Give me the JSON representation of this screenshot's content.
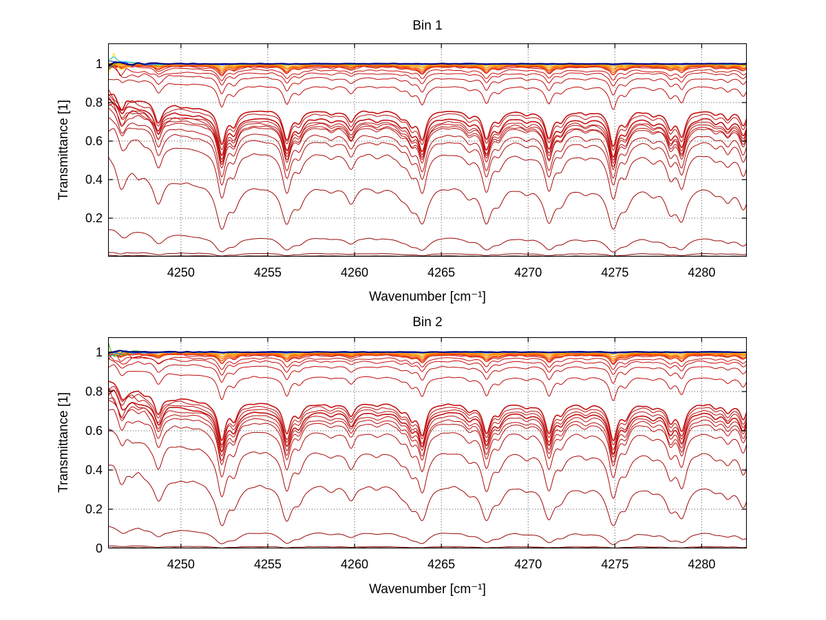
{
  "figure": {
    "background": "#ffffff",
    "curve_color_main": "#C00808",
    "grid_color": "#4a4a4a"
  },
  "chart_data": [
    {
      "type": "line",
      "title": "Bin 1",
      "xlabel": "Wavenumber [cm⁻¹]",
      "ylabel": "Transmittance [1]",
      "xlim": [
        4245.8,
        4282.6
      ],
      "ylim": [
        0,
        1.107
      ],
      "xticks": [
        4250,
        4255,
        4260,
        4265,
        4270,
        4275,
        4280
      ],
      "yticks": [
        0.2,
        0.4,
        0.6,
        0.8,
        1
      ],
      "ytick_labels": [
        "0.2",
        "0.4",
        "0.6",
        "0.8",
        "1"
      ],
      "grid": true,
      "absorption_lines": {
        "positions": [
          4246.6,
          4248.7,
          4252.35,
          4253.05,
          4256.1,
          4256.8,
          4258.65,
          4259.8,
          4261.3,
          4262.7,
          4263.3,
          4263.9,
          4266.6,
          4267.6,
          4268.3,
          4269.9,
          4271.2,
          4271.9,
          4273.3,
          4274.9,
          4275.6,
          4277.2,
          4278.2,
          4278.85,
          4280.8,
          4281.5,
          4282.4
        ],
        "strengths": [
          0.3,
          0.45,
          1.0,
          0.4,
          0.82,
          0.3,
          0.1,
          0.32,
          0.08,
          0.16,
          0.35,
          0.8,
          0.16,
          0.78,
          0.25,
          0.1,
          0.78,
          0.25,
          0.1,
          1.0,
          0.35,
          0.12,
          0.45,
          0.7,
          0.12,
          0.25,
          0.5
        ]
      },
      "series": [
        {
          "baseline": 0.985,
          "color": "#C80A0A",
          "width": 1,
          "kind": "red",
          "seed": 101
        },
        {
          "baseline": 0.97,
          "color": "#C80A0A",
          "width": 1,
          "kind": "red",
          "seed": 102
        },
        {
          "baseline": 0.955,
          "color": "#C80A0A",
          "width": 1,
          "kind": "red",
          "seed": 103
        },
        {
          "baseline": 0.93,
          "color": "#BE0909",
          "width": 1,
          "kind": "red",
          "seed": 104
        },
        {
          "baseline": 0.887,
          "color": "#BE0909",
          "width": 1,
          "kind": "red",
          "seed": 105
        },
        {
          "baseline": 0.764,
          "color": "#C41010",
          "width": 1.6,
          "kind": "red",
          "seed": 106
        },
        {
          "baseline": 0.748,
          "color": "#B80C0C",
          "width": 1,
          "kind": "red",
          "seed": 107
        },
        {
          "baseline": 0.725,
          "color": "#C41010",
          "width": 1.6,
          "kind": "red",
          "seed": 108
        },
        {
          "baseline": 0.71,
          "color": "#B80C0C",
          "width": 1,
          "kind": "red",
          "seed": 109
        },
        {
          "baseline": 0.7,
          "color": "#B80C0C",
          "width": 1,
          "kind": "red",
          "seed": 110
        },
        {
          "baseline": 0.688,
          "color": "#B80C0C",
          "width": 1,
          "kind": "red",
          "seed": 111
        },
        {
          "baseline": 0.679,
          "color": "#B80C0C",
          "width": 1,
          "kind": "red",
          "seed": 112
        },
        {
          "baseline": 0.643,
          "color": "#B00A0A",
          "width": 1,
          "kind": "red",
          "seed": 113
        },
        {
          "baseline": 0.611,
          "color": "#B00A0A",
          "width": 1,
          "kind": "red",
          "seed": 114
        },
        {
          "baseline": 0.546,
          "color": "#A80808",
          "width": 1,
          "kind": "red",
          "seed": 115
        },
        {
          "baseline": 0.375,
          "color": "#A00606",
          "width": 1,
          "kind": "red",
          "seed": 116
        },
        {
          "baseline": 0.107,
          "color": "#980505",
          "width": 1,
          "kind": "red",
          "seed": 117
        },
        {
          "baseline": 0.018,
          "color": "#8A0404",
          "width": 1,
          "kind": "red",
          "seed": 118
        },
        {
          "baseline": 0.004,
          "color": "#700303",
          "width": 1,
          "kind": "red",
          "seed": 119
        },
        {
          "baseline": 0.9995,
          "color": "#FFB400",
          "width": 1.4,
          "kind": "band",
          "alpha": 0.012,
          "seed": 121
        },
        {
          "baseline": 0.997,
          "color": "#FF9800",
          "width": 1.4,
          "kind": "band",
          "alpha": 0.02,
          "seed": 122
        },
        {
          "baseline": 0.9945,
          "color": "#FF7A00",
          "width": 1.4,
          "kind": "band",
          "alpha": 0.028,
          "seed": 123
        },
        {
          "baseline": 0.9915,
          "color": "#F65A08",
          "width": 1.4,
          "kind": "band",
          "alpha": 0.036,
          "seed": 124
        },
        {
          "baseline": 0.9885,
          "color": "#E63A10",
          "width": 1.4,
          "kind": "band",
          "alpha": 0.044,
          "seed": 125
        },
        {
          "baseline": 1.0,
          "color": "#FFD900",
          "width": 1,
          "kind": "edge",
          "alpha": 0.004,
          "edge_amp": 0.1,
          "seed": 131
        },
        {
          "baseline": 1.0,
          "color": "#2BB42B",
          "width": 1,
          "kind": "edge",
          "alpha": 0.004,
          "edge_amp": 0.085,
          "seed": 132
        },
        {
          "baseline": 1.0,
          "color": "#00C8F0",
          "width": 1,
          "kind": "edge",
          "alpha": 0.004,
          "edge_amp": 0.068,
          "seed": 133
        },
        {
          "baseline": 1.0,
          "color": "#2A5CFF",
          "width": 1.2,
          "kind": "edge",
          "alpha": 0.004,
          "edge_amp": 0.05,
          "seed": 134
        },
        {
          "baseline": 1.0015,
          "color": "#000082",
          "width": 2.1,
          "kind": "edge",
          "alpha": 0.002,
          "edge_amp": 0.013,
          "seed": 135
        }
      ]
    },
    {
      "type": "line",
      "title": "Bin 2",
      "xlabel": "Wavenumber [cm⁻¹]",
      "ylabel": "Transmittance [1]",
      "xlim": [
        4245.8,
        4282.6
      ],
      "ylim": [
        0,
        1.077
      ],
      "xticks": [
        4250,
        4255,
        4260,
        4265,
        4270,
        4275,
        4280
      ],
      "yticks": [
        0,
        0.2,
        0.4,
        0.6,
        0.8,
        1
      ],
      "ytick_labels": [
        "0",
        "0.2",
        "0.4",
        "0.6",
        "0.8",
        "1"
      ],
      "grid": true,
      "absorption_lines": {
        "positions": [
          4246.6,
          4248.7,
          4252.35,
          4253.05,
          4256.1,
          4256.8,
          4258.65,
          4259.8,
          4261.3,
          4262.7,
          4263.3,
          4263.9,
          4266.6,
          4267.6,
          4268.3,
          4269.9,
          4271.2,
          4271.9,
          4273.3,
          4274.9,
          4275.6,
          4277.2,
          4278.2,
          4278.85,
          4280.8,
          4281.5,
          4282.4
        ],
        "strengths": [
          0.3,
          0.45,
          1.0,
          0.4,
          0.82,
          0.3,
          0.1,
          0.32,
          0.08,
          0.16,
          0.35,
          0.8,
          0.16,
          0.78,
          0.25,
          0.1,
          0.78,
          0.25,
          0.1,
          1.0,
          0.35,
          0.12,
          0.45,
          0.7,
          0.12,
          0.25,
          0.5
        ]
      },
      "series": [
        {
          "baseline": 0.985,
          "color": "#C80A0A",
          "width": 1,
          "kind": "red",
          "seed": 201
        },
        {
          "baseline": 0.97,
          "color": "#C80A0A",
          "width": 1,
          "kind": "red",
          "seed": 202
        },
        {
          "baseline": 0.955,
          "color": "#C80A0A",
          "width": 1,
          "kind": "red",
          "seed": 203
        },
        {
          "baseline": 0.93,
          "color": "#BE0909",
          "width": 1,
          "kind": "red",
          "seed": 204
        },
        {
          "baseline": 0.878,
          "color": "#BE0909",
          "width": 1,
          "kind": "red",
          "seed": 205
        },
        {
          "baseline": 0.745,
          "color": "#C41010",
          "width": 1.6,
          "kind": "red",
          "seed": 206
        },
        {
          "baseline": 0.73,
          "color": "#B80C0C",
          "width": 1,
          "kind": "red",
          "seed": 207
        },
        {
          "baseline": 0.715,
          "color": "#B80C0C",
          "width": 1,
          "kind": "red",
          "seed": 208
        },
        {
          "baseline": 0.7,
          "color": "#C41010",
          "width": 1.6,
          "kind": "red",
          "seed": 209
        },
        {
          "baseline": 0.685,
          "color": "#B80C0C",
          "width": 1,
          "kind": "red",
          "seed": 210
        },
        {
          "baseline": 0.667,
          "color": "#B80C0C",
          "width": 1,
          "kind": "red",
          "seed": 211
        },
        {
          "baseline": 0.65,
          "color": "#B80C0C",
          "width": 1,
          "kind": "red",
          "seed": 212
        },
        {
          "baseline": 0.604,
          "color": "#B00A0A",
          "width": 1,
          "kind": "red",
          "seed": 213
        },
        {
          "baseline": 0.505,
          "color": "#A80808",
          "width": 1,
          "kind": "red",
          "seed": 214
        },
        {
          "baseline": 0.34,
          "color": "#A00606",
          "width": 1,
          "kind": "red",
          "seed": 215
        },
        {
          "baseline": 0.088,
          "color": "#980505",
          "width": 1,
          "kind": "red",
          "seed": 216
        },
        {
          "baseline": 0.01,
          "color": "#8A0404",
          "width": 1,
          "kind": "red",
          "seed": 217
        },
        {
          "baseline": 0.003,
          "color": "#700303",
          "width": 1,
          "kind": "red",
          "seed": 218
        },
        {
          "baseline": 0.9995,
          "color": "#FFB400",
          "width": 1.4,
          "kind": "band",
          "alpha": 0.012,
          "seed": 221
        },
        {
          "baseline": 0.997,
          "color": "#FF9800",
          "width": 1.4,
          "kind": "band",
          "alpha": 0.02,
          "seed": 222
        },
        {
          "baseline": 0.9945,
          "color": "#FF7A00",
          "width": 1.4,
          "kind": "band",
          "alpha": 0.028,
          "seed": 223
        },
        {
          "baseline": 0.9915,
          "color": "#F65A08",
          "width": 1.4,
          "kind": "band",
          "alpha": 0.036,
          "seed": 224
        },
        {
          "baseline": 0.9885,
          "color": "#E63A10",
          "width": 1.4,
          "kind": "band",
          "alpha": 0.044,
          "seed": 225
        },
        {
          "baseline": 1.0,
          "color": "#FFD900",
          "width": 1,
          "kind": "edge",
          "alpha": 0.004,
          "edge_amp": 0.052,
          "seed": 231
        },
        {
          "baseline": 1.0,
          "color": "#2BB42B",
          "width": 1,
          "kind": "edge",
          "alpha": 0.004,
          "edge_amp": 0.045,
          "seed": 232
        },
        {
          "baseline": 1.0,
          "color": "#00C8F0",
          "width": 1,
          "kind": "edge",
          "alpha": 0.004,
          "edge_amp": 0.038,
          "seed": 233
        },
        {
          "baseline": 1.0,
          "color": "#2A5CFF",
          "width": 1.2,
          "kind": "edge",
          "alpha": 0.004,
          "edge_amp": 0.028,
          "seed": 234
        },
        {
          "baseline": 1.0015,
          "color": "#000082",
          "width": 2.1,
          "kind": "edge",
          "alpha": 0.002,
          "edge_amp": 0.01,
          "seed": 235
        }
      ]
    }
  ]
}
